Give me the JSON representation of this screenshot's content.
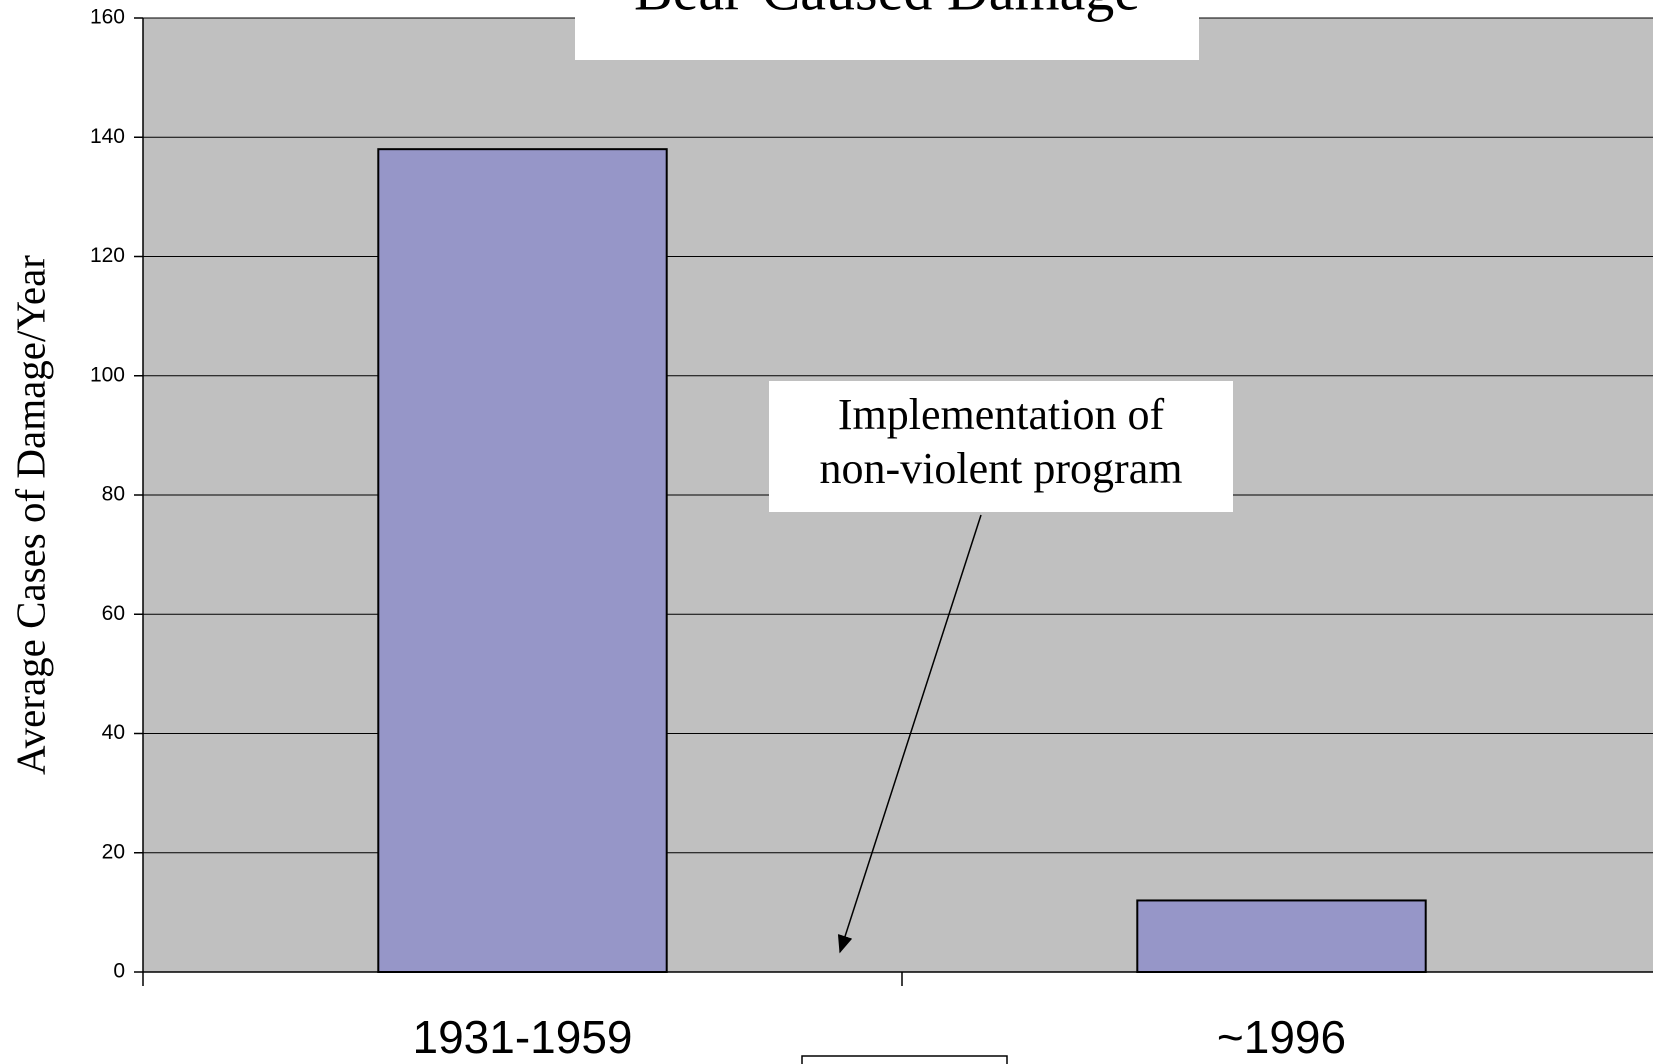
{
  "chart_data": {
    "type": "bar",
    "title": "Bear-Caused Damage",
    "y_label": "Average Cases of Damage/Year",
    "annotation": [
      "Implementation of",
      "non-violent program"
    ],
    "categories": [
      "1931-1959",
      "~1996"
    ],
    "values": [
      138,
      12
    ],
    "color": "#9696c8",
    "ylim": [
      0,
      160
    ],
    "yticks": [
      0,
      20,
      40,
      60,
      80,
      100,
      120,
      140,
      160
    ],
    "grid": true
  }
}
